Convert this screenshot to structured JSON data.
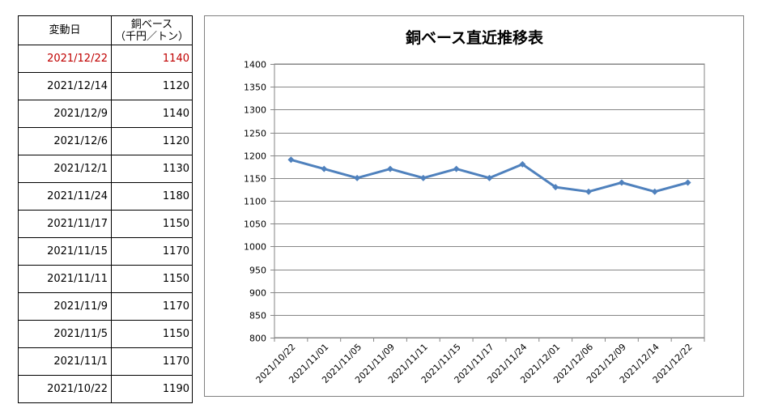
{
  "table": {
    "header": {
      "date": "変動日",
      "price_line1": "銅ベース",
      "price_line2": "（千円／トン）"
    },
    "rows": [
      {
        "date": "2021/12/22",
        "price": "1140"
      },
      {
        "date": "2021/12/14",
        "price": "1120"
      },
      {
        "date": "2021/12/9",
        "price": "1140"
      },
      {
        "date": "2021/12/6",
        "price": "1120"
      },
      {
        "date": "2021/12/1",
        "price": "1130"
      },
      {
        "date": "2021/11/24",
        "price": "1180"
      },
      {
        "date": "2021/11/17",
        "price": "1150"
      },
      {
        "date": "2021/11/15",
        "price": "1170"
      },
      {
        "date": "2021/11/11",
        "price": "1150"
      },
      {
        "date": "2021/11/9",
        "price": "1170"
      },
      {
        "date": "2021/11/5",
        "price": "1150"
      },
      {
        "date": "2021/11/1",
        "price": "1170"
      },
      {
        "date": "2021/10/22",
        "price": "1190"
      }
    ],
    "highlight_color": "#c00000"
  },
  "chart_data": {
    "type": "line",
    "title": "銅ベース直近推移表",
    "categories": [
      "2021/10/22",
      "2021/11/01",
      "2021/11/05",
      "2021/11/09",
      "2021/11/11",
      "2021/11/15",
      "2021/11/17",
      "2021/11/24",
      "2021/12/01",
      "2021/12/06",
      "2021/12/09",
      "2021/12/14",
      "2021/12/22"
    ],
    "series": [
      {
        "values": [
          1190,
          1170,
          1150,
          1170,
          1150,
          1170,
          1150,
          1180,
          1130,
          1120,
          1140,
          1120,
          1140
        ]
      }
    ],
    "ylim": [
      800,
      1400
    ],
    "yticks": [
      800,
      850,
      900,
      950,
      1000,
      1050,
      1100,
      1150,
      1200,
      1250,
      1300,
      1350,
      1400
    ],
    "grid": true,
    "legend": "none",
    "line_color": "#4f81bd",
    "grid_color": "#868686"
  }
}
